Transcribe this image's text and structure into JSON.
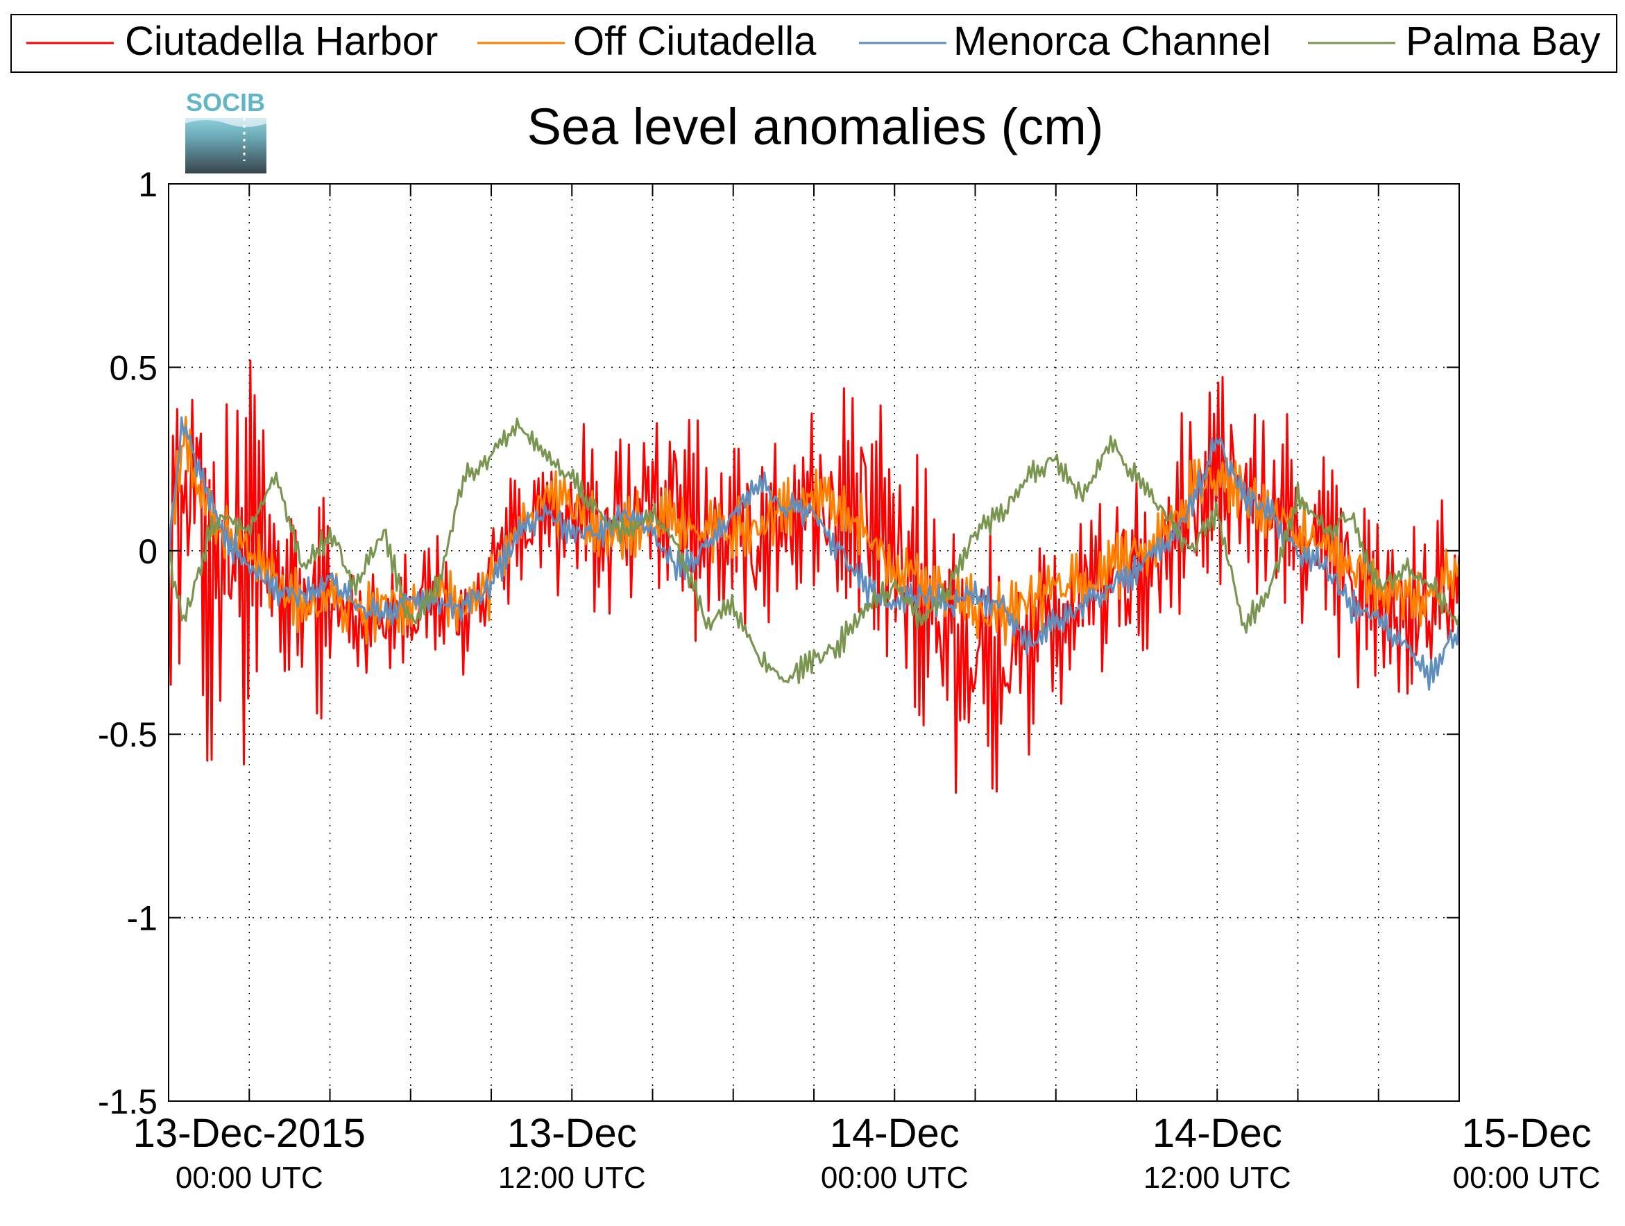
{
  "logo": {
    "text": "SOCIB"
  },
  "chart_data": {
    "type": "line",
    "title": "Sea level anomalies (cm)",
    "xlabel": "",
    "ylabel": "",
    "grid": true,
    "legend_position": "top",
    "x_unit": "hours since 13-Dec-2015 00:00 UTC",
    "xlim": [
      -3,
      45
    ],
    "ylim": [
      -1.5,
      1
    ],
    "y_ticks": [
      {
        "value": 1,
        "label": "1"
      },
      {
        "value": 0.5,
        "label": "0.5"
      },
      {
        "value": 0,
        "label": "0"
      },
      {
        "value": -0.5,
        "label": "-0.5"
      },
      {
        "value": -1,
        "label": "-1"
      },
      {
        "value": -1.5,
        "label": "-1.5"
      }
    ],
    "x_ticks": [
      {
        "value": 0,
        "line1": "13-Dec-2015",
        "line2": "00:00 UTC"
      },
      {
        "value": 12,
        "line1": "13-Dec",
        "line2": "12:00 UTC"
      },
      {
        "value": 24,
        "line1": "14-Dec",
        "line2": "00:00 UTC"
      },
      {
        "value": 36,
        "line1": "14-Dec",
        "line2": "12:00 UTC"
      },
      {
        "value": 48,
        "line1": "15-Dec",
        "line2": "00:00 UTC"
      }
    ],
    "x_minor_ticks": [
      -3,
      3,
      6,
      9,
      15,
      18,
      21,
      27,
      30,
      33,
      39,
      42,
      45
    ],
    "series": [
      {
        "name": "Ciutadella Harbor",
        "color": "#ff0000",
        "noise": 0.32,
        "x": [
          -3,
          -2.5,
          -2,
          -1.5,
          -1,
          -0.5,
          0,
          1,
          2,
          3,
          4,
          5,
          6,
          7,
          8,
          9,
          10,
          11,
          12,
          13,
          14,
          15,
          16,
          17,
          18,
          19,
          20,
          21,
          22,
          23,
          24,
          25,
          26,
          27,
          28,
          29,
          30,
          31,
          32,
          33,
          34,
          35,
          36,
          37,
          38,
          39,
          40,
          41,
          42,
          43,
          44,
          45
        ],
        "y": [
          0,
          0.2,
          0.15,
          -0.1,
          0.05,
          0.0,
          -0.05,
          -0.1,
          -0.15,
          -0.15,
          -0.2,
          -0.18,
          -0.15,
          -0.12,
          -0.2,
          -0.05,
          0.05,
          0.1,
          0.08,
          0.05,
          0.1,
          0.15,
          0.1,
          0.05,
          0.0,
          0.05,
          0.1,
          0.15,
          0.1,
          0.05,
          0.0,
          -0.1,
          -0.2,
          -0.3,
          -0.35,
          -0.25,
          -0.2,
          -0.15,
          -0.1,
          -0.05,
          0.0,
          0.1,
          0.2,
          0.15,
          0.1,
          0.05,
          0.0,
          -0.1,
          -0.15,
          -0.2,
          -0.15,
          -0.15
        ]
      },
      {
        "name": "Off Ciutadella",
        "color": "#ff8000",
        "noise": 0.1,
        "x": [
          -3,
          -2.5,
          -2,
          -1,
          0,
          1,
          2,
          3,
          4,
          5,
          6,
          7,
          8,
          9,
          10,
          11,
          12,
          13,
          14,
          15,
          16,
          17,
          18,
          19,
          20,
          21,
          22,
          23,
          24,
          25,
          26,
          27,
          28,
          29,
          30,
          31,
          32,
          33,
          34,
          35,
          36,
          37,
          38,
          39,
          40,
          41,
          42,
          43,
          44,
          45
        ],
        "y": [
          0,
          0.3,
          0.2,
          0.05,
          0.0,
          -0.1,
          -0.15,
          -0.12,
          -0.18,
          -0.15,
          -0.15,
          -0.1,
          -0.15,
          -0.1,
          0.05,
          0.15,
          0.12,
          0.05,
          0.05,
          0.1,
          0.08,
          0.05,
          0.05,
          0.08,
          0.12,
          0.15,
          0.12,
          0.05,
          -0.05,
          -0.08,
          -0.12,
          -0.15,
          -0.18,
          -0.15,
          -0.1,
          -0.08,
          -0.05,
          0.0,
          0.05,
          0.15,
          0.22,
          0.15,
          0.1,
          0.05,
          0.0,
          -0.05,
          -0.1,
          -0.12,
          -0.12,
          -0.05
        ]
      },
      {
        "name": "Menorca Channel",
        "color": "#5f8fbf",
        "noise": 0.05,
        "x": [
          -3,
          -2.5,
          -2,
          -1,
          0,
          1,
          2,
          3,
          4,
          5,
          6,
          7,
          8,
          9,
          10,
          11,
          12,
          13,
          14,
          15,
          16,
          17,
          18,
          19,
          20,
          21,
          22,
          23,
          24,
          25,
          26,
          27,
          28,
          29,
          30,
          31,
          32,
          33,
          34,
          35,
          36,
          37,
          38,
          39,
          40,
          41,
          42,
          43,
          44,
          45
        ],
        "y": [
          0,
          0.35,
          0.25,
          0.05,
          -0.05,
          -0.1,
          -0.12,
          -0.08,
          -0.15,
          -0.18,
          -0.12,
          -0.15,
          -0.15,
          -0.1,
          0.05,
          0.1,
          0.05,
          0.05,
          0.1,
          0.05,
          -0.05,
          0.0,
          0.1,
          0.18,
          0.12,
          0.1,
          0.0,
          -0.1,
          -0.15,
          -0.12,
          -0.15,
          -0.12,
          -0.15,
          -0.25,
          -0.2,
          -0.15,
          -0.1,
          -0.05,
          0.0,
          0.12,
          0.3,
          0.15,
          0.1,
          0.0,
          -0.05,
          -0.15,
          -0.2,
          -0.25,
          -0.35,
          -0.2
        ]
      },
      {
        "name": "Palma Bay",
        "color": "#7a9550",
        "noise": 0.04,
        "x": [
          -3,
          -2.5,
          -2,
          -1.5,
          -1,
          0,
          1,
          2,
          3,
          4,
          5,
          6,
          7,
          8,
          9,
          10,
          11,
          12,
          13,
          14,
          15,
          16,
          17,
          18,
          19,
          20,
          21,
          22,
          23,
          24,
          25,
          26,
          27,
          28,
          29,
          30,
          31,
          32,
          33,
          34,
          35,
          36,
          37,
          38,
          39,
          40,
          41,
          42,
          43,
          44,
          45
        ],
        "y": [
          0,
          -0.2,
          -0.1,
          0.05,
          0.1,
          0.05,
          0.2,
          -0.05,
          0.05,
          -0.1,
          0.05,
          -0.2,
          -0.1,
          0.2,
          0.25,
          0.35,
          0.25,
          0.2,
          0.1,
          0.05,
          0.1,
          0.0,
          -0.2,
          -0.15,
          -0.3,
          -0.35,
          -0.3,
          -0.25,
          -0.15,
          -0.1,
          -0.2,
          -0.1,
          0.05,
          0.1,
          0.2,
          0.25,
          0.15,
          0.3,
          0.2,
          0.1,
          0.0,
          0.1,
          -0.2,
          -0.1,
          0.15,
          0.05,
          0.1,
          -0.1,
          -0.05,
          -0.1,
          -0.2
        ]
      }
    ]
  }
}
